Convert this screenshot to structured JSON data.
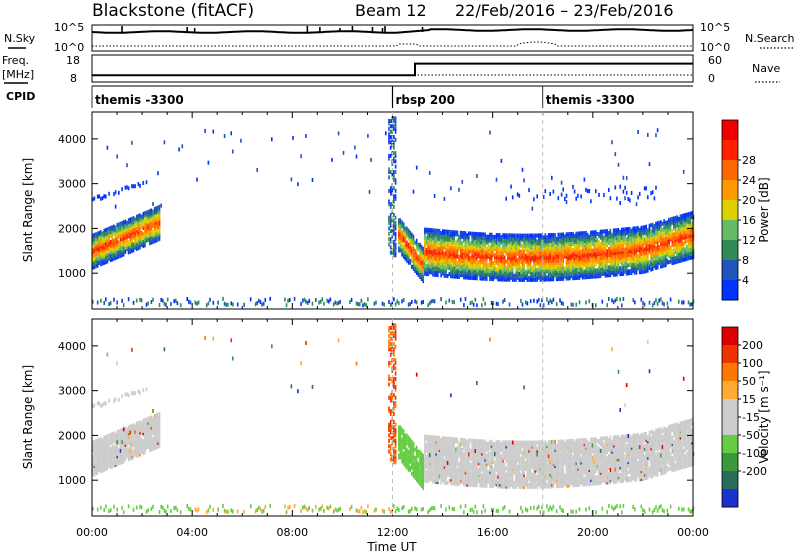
{
  "header": {
    "title": "Blackstone (fitACF)",
    "beam": "Beam 12",
    "date_range": "22/Feb/2016 – 23/Feb/2016"
  },
  "top_panels": {
    "nsky_label": "N.Sky",
    "nsearch_label": "N.Search",
    "freq_label_line1": "Freq.",
    "freq_label_line2": "[MHz]",
    "nave_label": "Nave",
    "cpid_label": "CPID",
    "nsky_ticks": [
      "10^5",
      "10^0"
    ],
    "nsky_right_ticks": [
      "10^5",
      "10^0"
    ],
    "freq_ticks": [
      "18",
      "8"
    ],
    "nave_ticks": [
      "60",
      "0"
    ],
    "freq_step": {
      "before_mhz": 10.5,
      "after_mhz": 11.8,
      "change_hour": 12.9
    },
    "cpid": [
      {
        "name": "themis -3300",
        "start_hour": 0
      },
      {
        "name": "rbsp 200",
        "start_hour": 12
      },
      {
        "name": "themis -3300",
        "start_hour": 18
      }
    ]
  },
  "chart_data": [
    {
      "type": "heatmap",
      "parameter": "Power",
      "ylabel": "Slant Range [km]",
      "xlabel": "Time UT",
      "xlim_hours": [
        0,
        24
      ],
      "ylim_km": [
        200,
        4600
      ],
      "y_ticks": [
        1000,
        2000,
        3000,
        4000
      ],
      "x_tick_labels": [
        "00:00",
        "04:00",
        "08:00",
        "12:00",
        "16:00",
        "20:00",
        "00:00"
      ],
      "colorbar": {
        "label": "Power [dB]",
        "ticks": [
          "4",
          "8",
          "12",
          "16",
          "20",
          "24",
          "28"
        ],
        "colors": [
          "#0033ff",
          "#2255bb",
          "#2e8b57",
          "#66bb66",
          "#ddd000",
          "#ff9900",
          "#ff6600",
          "#ff2200",
          "#ee0000"
        ]
      },
      "scatter_bands": [
        {
          "hours": [
            0,
            2.6
          ],
          "center_km": [
            1500,
            2100
          ],
          "peak_db": 24
        },
        {
          "hours": [
            12.2,
            13.2
          ],
          "center_km": [
            1800,
            1100
          ],
          "peak_db": 26
        },
        {
          "hours": [
            13.2,
            24
          ],
          "center_km": [
            1500,
            1550
          ],
          "peak_db": 24
        }
      ]
    },
    {
      "type": "heatmap",
      "parameter": "Velocity",
      "ylabel": "Slant Range [km]",
      "xlabel": "Time UT",
      "xlim_hours": [
        0,
        24
      ],
      "ylim_km": [
        200,
        4600
      ],
      "y_ticks": [
        1000,
        2000,
        3000,
        4000
      ],
      "x_tick_labels": [
        "00:00",
        "04:00",
        "08:00",
        "12:00",
        "16:00",
        "20:00",
        "00:00"
      ],
      "colorbar": {
        "label": "Velocity [m s⁻¹]",
        "ticks": [
          "200",
          "100",
          "50",
          "15",
          "-15",
          "-50",
          "-100",
          "-200"
        ],
        "colors": [
          "#1a33cc",
          "#2a6b5a",
          "#3a9a3a",
          "#66cc44",
          "#cccccc",
          "#cccccc",
          "#ffaa33",
          "#ff7700",
          "#ee3300",
          "#dd0000"
        ]
      }
    }
  ],
  "time_axis": {
    "xlabel": "Time UT"
  }
}
